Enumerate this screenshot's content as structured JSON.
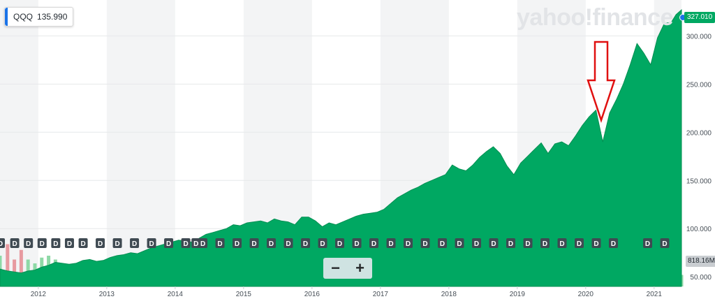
{
  "header": {
    "symbol": "QQQ",
    "value": "135.990"
  },
  "brand": "yahoo!finance",
  "last_price_label": "327.010",
  "volume_label": "818.16M",
  "zoom": {
    "minus": "−",
    "plus": "+"
  },
  "dividend_marker": "D",
  "colors": {
    "area": "#00a862",
    "vol_up": "#8ed9a6",
    "vol_down": "#e79aa0",
    "band": "#f3f4f5",
    "accent": "#1a73e8"
  },
  "chart_data": {
    "type": "area",
    "x_axis_labels": [
      "2012",
      "2013",
      "2014",
      "2015",
      "2016",
      "2017",
      "2018",
      "2019",
      "2020",
      "2021"
    ],
    "y_axis_labels": [
      "50.000",
      "100.000",
      "150.000",
      "200.000",
      "250.000",
      "300.000"
    ],
    "ylim": [
      40,
      330
    ],
    "xlim": [
      2011.44,
      2021.4
    ],
    "grid": true,
    "x": [
      2011.44,
      2011.55,
      2011.65,
      2011.75,
      2011.85,
      2011.95,
      2012.05,
      2012.15,
      2012.25,
      2012.35,
      2012.45,
      2012.55,
      2012.65,
      2012.75,
      2012.85,
      2012.95,
      2013.05,
      2013.15,
      2013.25,
      2013.35,
      2013.45,
      2013.55,
      2013.65,
      2013.75,
      2013.85,
      2013.95,
      2014.05,
      2014.15,
      2014.25,
      2014.35,
      2014.45,
      2014.55,
      2014.65,
      2014.75,
      2014.85,
      2014.95,
      2015.05,
      2015.15,
      2015.25,
      2015.35,
      2015.45,
      2015.55,
      2015.65,
      2015.75,
      2015.85,
      2015.95,
      2016.05,
      2016.15,
      2016.25,
      2016.35,
      2016.45,
      2016.55,
      2016.65,
      2016.75,
      2016.85,
      2016.95,
      2017.05,
      2017.15,
      2017.25,
      2017.35,
      2017.45,
      2017.55,
      2017.65,
      2017.75,
      2017.85,
      2017.95,
      2018.05,
      2018.15,
      2018.25,
      2018.35,
      2018.45,
      2018.55,
      2018.65,
      2018.75,
      2018.85,
      2018.95,
      2019.05,
      2019.15,
      2019.25,
      2019.35,
      2019.45,
      2019.55,
      2019.65,
      2019.75,
      2019.85,
      2019.95,
      2020.05,
      2020.15,
      2020.25,
      2020.35,
      2020.45,
      2020.55,
      2020.65,
      2020.75,
      2020.85,
      2020.95,
      2021.05,
      2021.15,
      2021.25,
      2021.32,
      2021.4
    ],
    "values": [
      58,
      56,
      55,
      54,
      56,
      57,
      60,
      62,
      65,
      64,
      63,
      64,
      67,
      68,
      66,
      67,
      70,
      72,
      73,
      75,
      74,
      77,
      80,
      82,
      84,
      86,
      88,
      87,
      86,
      90,
      94,
      96,
      98,
      100,
      104,
      103,
      106,
      107,
      108,
      106,
      110,
      108,
      107,
      104,
      112,
      112,
      108,
      102,
      106,
      104,
      107,
      110,
      113,
      115,
      116,
      117,
      120,
      126,
      132,
      136,
      140,
      143,
      147,
      150,
      153,
      156,
      166,
      162,
      160,
      166,
      174,
      180,
      185,
      178,
      165,
      156,
      168,
      175,
      182,
      189,
      178,
      188,
      190,
      186,
      196,
      207,
      216,
      223,
      190,
      220,
      234,
      250,
      270,
      292,
      282,
      270,
      298,
      313,
      314,
      322,
      327
    ],
    "dividend_x": [
      2011.44,
      2011.65,
      2011.85,
      2012.05,
      2012.25,
      2012.45,
      2012.65,
      2012.9,
      2013.15,
      2013.4,
      2013.65,
      2013.9,
      2014.15,
      2014.3,
      2014.4,
      2014.65,
      2014.9,
      2015.15,
      2015.4,
      2015.65,
      2015.9,
      2016.15,
      2016.4,
      2016.65,
      2016.9,
      2017.15,
      2017.4,
      2017.65,
      2017.9,
      2018.15,
      2018.4,
      2018.65,
      2018.9,
      2019.15,
      2019.4,
      2019.65,
      2019.9,
      2020.15,
      2020.4,
      2020.9,
      2021.15
    ],
    "volume": [
      80,
      110,
      70,
      95,
      70,
      60,
      75,
      80,
      70,
      55,
      45,
      60,
      50,
      40,
      35,
      45,
      40,
      35,
      30,
      40,
      45,
      35,
      30,
      40,
      50,
      38,
      42,
      35,
      45,
      40,
      38,
      50,
      42,
      35,
      30,
      55,
      40,
      38,
      45,
      35,
      42,
      48,
      40,
      38,
      35,
      30,
      45,
      50,
      38,
      30,
      35,
      40,
      42,
      38,
      30,
      25,
      30,
      28,
      35,
      30,
      32,
      28,
      30,
      35,
      33,
      38,
      40,
      45,
      42,
      35,
      38,
      40,
      45,
      50,
      48,
      42,
      55,
      45,
      40,
      42,
      48,
      40,
      38,
      45,
      50,
      52,
      60,
      75,
      55,
      48,
      45,
      40,
      42,
      45,
      48,
      52,
      45,
      40,
      38,
      35,
      30
    ],
    "annotations": [
      "red-down-arrow-at-2020-crash"
    ]
  }
}
